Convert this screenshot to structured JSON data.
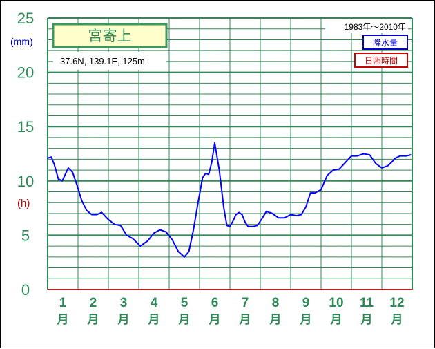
{
  "station": {
    "name": "宮寄上",
    "coords": "37.6N,  139.1E,  125m",
    "period": "1983年～2010年"
  },
  "legend": {
    "precip_label": "降水量",
    "sunshine_label": "日照時間"
  },
  "units": {
    "left_mm": "(mm)",
    "left_h": "(h)"
  },
  "x_unit": "月",
  "colors": {
    "grid": "#2e8b57",
    "sunshine_line": "#0000ff",
    "precip_color": "#0000cc",
    "sunshine_color": "#cc0000",
    "baseline": "#b22222",
    "station_bg": "#ffffcc"
  },
  "chart_data": {
    "type": "line",
    "title": "宮寄上",
    "ylabel": "(h)",
    "ylim": [
      0,
      25
    ],
    "yticks": [
      "0",
      "5",
      "10",
      "15",
      "20",
      "25"
    ],
    "categories": [
      "1",
      "2",
      "3",
      "4",
      "5",
      "6",
      "7",
      "8",
      "9",
      "10",
      "11",
      "12"
    ],
    "series": [
      {
        "name": "日照時間",
        "x": [
          0.5,
          0.62,
          0.72,
          0.85,
          0.98,
          1.08,
          1.18,
          1.32,
          1.48,
          1.62,
          1.78,
          1.95,
          2.12,
          2.28,
          2.48,
          2.7,
          2.9,
          3.1,
          3.3,
          3.55,
          3.8,
          4.0,
          4.2,
          4.4,
          4.6,
          4.8,
          5.0,
          5.15,
          5.3,
          5.45,
          5.6,
          5.7,
          5.8,
          5.9,
          6.0,
          6.15,
          6.3,
          6.4,
          6.5,
          6.6,
          6.7,
          6.8,
          6.9,
          7.0,
          7.1,
          7.25,
          7.4,
          7.55,
          7.7,
          7.9,
          8.1,
          8.3,
          8.5,
          8.7,
          8.85,
          9.0,
          9.15,
          9.3,
          9.5,
          9.7,
          9.9,
          10.1,
          10.3,
          10.5,
          10.7,
          10.9,
          11.1,
          11.3,
          11.5,
          11.7,
          11.85,
          11.95,
          12.1,
          12.3,
          12.45
        ],
        "values": [
          12.1,
          12.2,
          11.5,
          10.2,
          10.0,
          10.6,
          11.2,
          10.8,
          9.5,
          8.2,
          7.3,
          6.9,
          6.9,
          7.1,
          6.5,
          6.0,
          5.9,
          5.0,
          4.7,
          4.0,
          4.5,
          5.2,
          5.5,
          5.3,
          4.6,
          3.5,
          3.0,
          3.5,
          5.5,
          8.0,
          10.3,
          10.7,
          10.6,
          11.7,
          13.5,
          11.0,
          7.5,
          5.9,
          5.8,
          6.3,
          6.9,
          7.1,
          6.9,
          6.2,
          5.8,
          5.8,
          5.9,
          6.5,
          7.2,
          7.0,
          6.6,
          6.6,
          6.9,
          6.8,
          6.9,
          7.6,
          8.9,
          8.9,
          9.2,
          10.5,
          11.0,
          11.1,
          11.7,
          12.3,
          12.3,
          12.5,
          12.4,
          11.6,
          11.2,
          11.4,
          11.8,
          12.1,
          12.3,
          12.3,
          12.4
        ]
      }
    ],
    "grid": true,
    "legend": "top-right"
  }
}
